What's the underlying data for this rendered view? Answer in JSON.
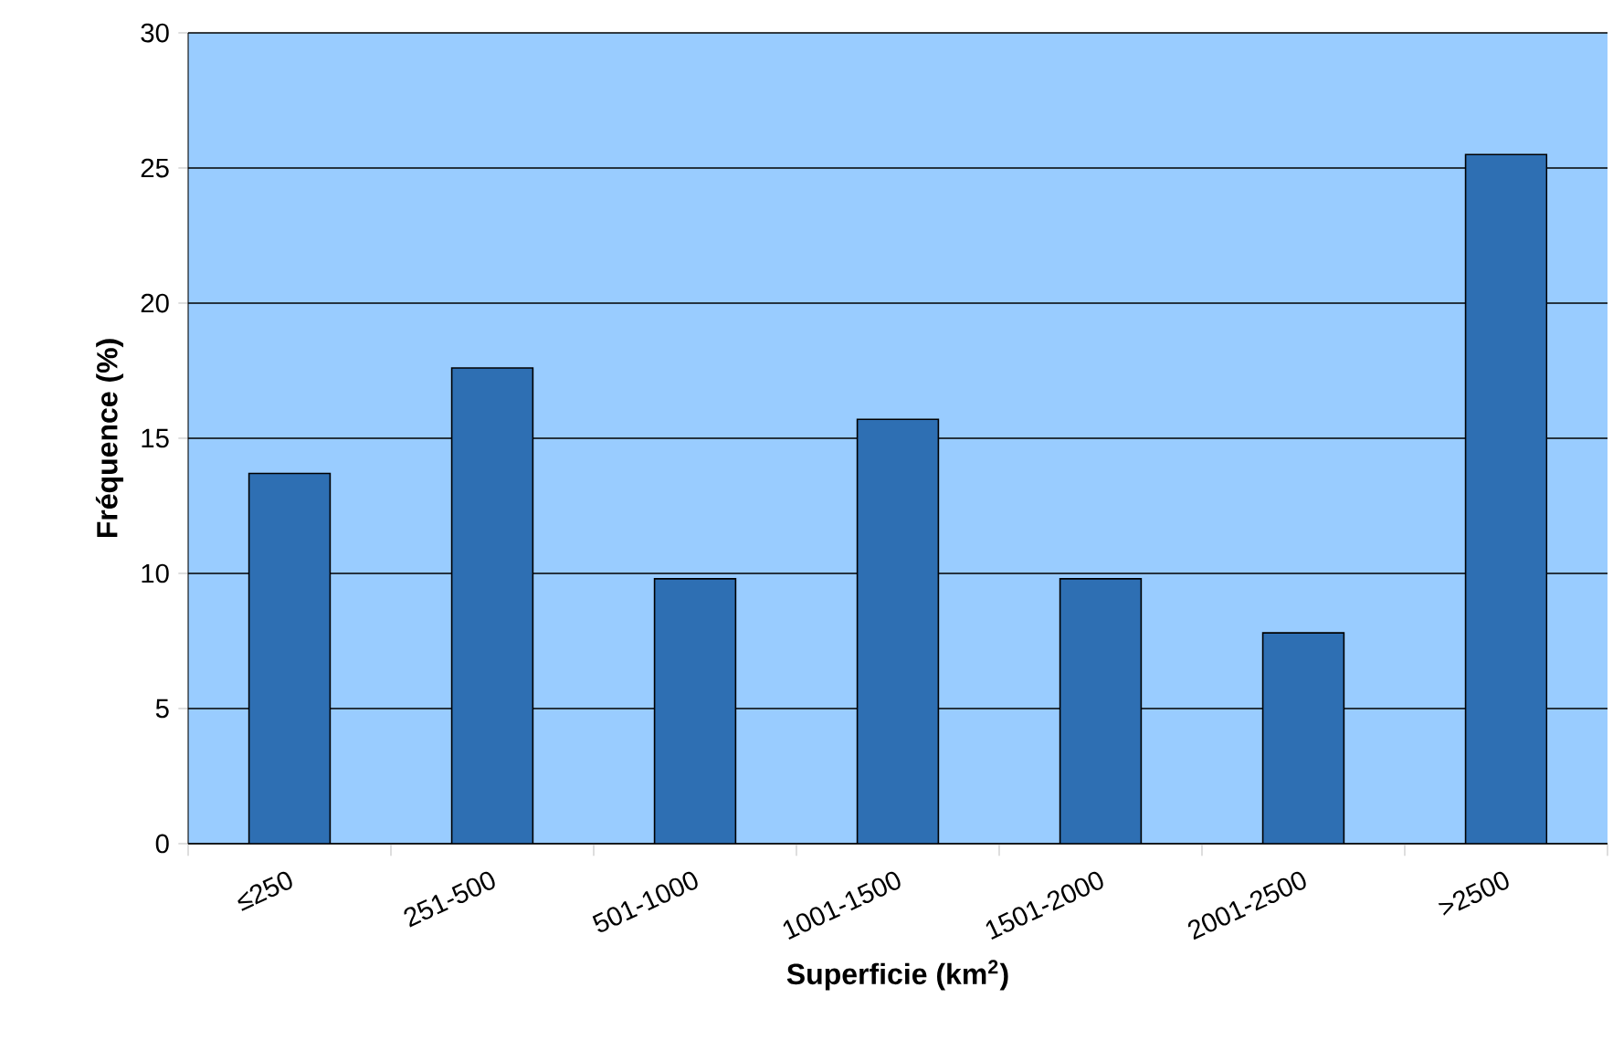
{
  "chart_data": {
    "type": "bar",
    "xlabel": "Superficie (km$^{2}$)",
    "ylabel": "Fréquence (%)",
    "categories": [
      "≤250",
      "251-500",
      "501-1000",
      "1001-1500",
      "1501-2000",
      "2001-2500",
      ">2500"
    ],
    "values": [
      13.7,
      17.6,
      9.8,
      15.7,
      9.8,
      7.8,
      25.5
    ],
    "color": "#2e6fb3",
    "ylim": [
      0,
      30
    ],
    "yticks": [
      0,
      5,
      10,
      15,
      20,
      25,
      30
    ],
    "grid": "y"
  }
}
